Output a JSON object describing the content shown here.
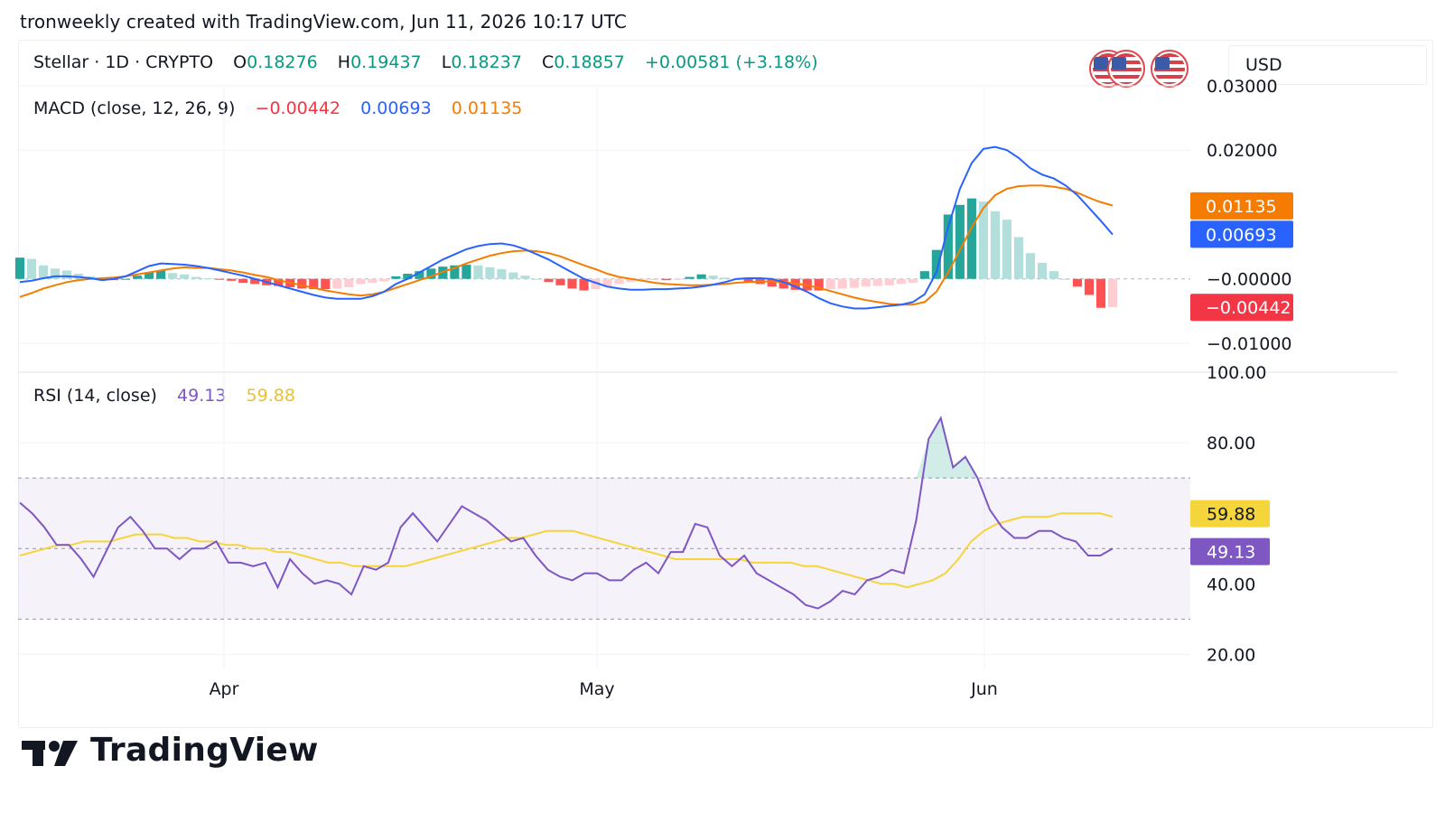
{
  "caption": "tronweekly created with TradingView.com, Jun 11, 2026 10:17 UTC",
  "symbol": {
    "title": "Stellar · 1D · CRYPTO",
    "o_label": "O",
    "o_value": "0.18276",
    "h_label": "H",
    "h_value": "0.19437",
    "l_label": "L",
    "l_value": "0.18237",
    "c_label": "C",
    "c_value": "0.18857",
    "change": "+0.00581 (+3.18%)"
  },
  "currency": "USD",
  "flags": [
    "us-flag-icon",
    "us-flag-icon"
  ],
  "brand": "TradingView",
  "colors": {
    "up": "#089981",
    "down": "#f23645",
    "macd": "#2962ff",
    "signal": "#f57c00",
    "rsi": "#7e57c2",
    "rsi_ma": "#f5d53c",
    "hist_up": "#26a69a",
    "hist_up_light": "#b2dfdb",
    "hist_down": "#ff5252",
    "hist_down_light": "#ffcdd2"
  },
  "chart_data": [
    {
      "type": "line",
      "title": "MACD (close, 12, 26, 9)",
      "legend_values": {
        "histogram": "−0.00442",
        "macd": "0.00693",
        "signal": "0.01135"
      },
      "x_ticks": [
        "Apr",
        "May",
        "Jun"
      ],
      "y_ticks": [
        "0.03000",
        "0.02000",
        "−0.00000",
        "−0.01000"
      ],
      "ylim": [
        -0.0145,
        0.03
      ],
      "price_tags": {
        "signal": "0.01135",
        "macd": "0.00693",
        "histogram": "−0.00442"
      },
      "series": [
        {
          "name": "MACD",
          "values": [
            -0.0005,
            -0.0003,
            0.0001,
            0.0004,
            0.0004,
            0.0003,
            0.0001,
            -0.0002,
            0.0,
            0.0004,
            0.0012,
            0.002,
            0.0024,
            0.0023,
            0.0022,
            0.002,
            0.0017,
            0.0013,
            0.0009,
            0.0005,
            0.0,
            -0.0005,
            -0.001,
            -0.0015,
            -0.002,
            -0.0025,
            -0.0029,
            -0.0031,
            -0.0031,
            -0.0031,
            -0.0027,
            -0.002,
            -0.0008,
            0.0,
            0.001,
            0.002,
            0.003,
            0.0038,
            0.0046,
            0.0051,
            0.0054,
            0.0055,
            0.0052,
            0.0046,
            0.0038,
            0.003,
            0.002,
            0.001,
            0.0,
            -0.0006,
            -0.0012,
            -0.0015,
            -0.0017,
            -0.0017,
            -0.0016,
            -0.0016,
            -0.0015,
            -0.0014,
            -0.0012,
            -0.0009,
            -0.0005,
            0.0,
            0.0001,
            0.0001,
            0.0,
            -0.0005,
            -0.0012,
            -0.002,
            -0.003,
            -0.0038,
            -0.0043,
            -0.0046,
            -0.0046,
            -0.0044,
            -0.0042,
            -0.004,
            -0.0036,
            -0.0024,
            0.001,
            0.008,
            0.014,
            0.018,
            0.0202,
            0.0205,
            0.02,
            0.0188,
            0.0172,
            0.0162,
            0.0156,
            0.0145,
            0.013,
            0.011,
            0.009,
            0.0069
          ]
        },
        {
          "name": "Signal",
          "values": [
            -0.0028,
            -0.0022,
            -0.0015,
            -0.001,
            -0.0005,
            -0.0002,
            0.0,
            0.0001,
            0.0002,
            0.0004,
            0.0007,
            0.001,
            0.0013,
            0.0016,
            0.0018,
            0.0017,
            0.0017,
            0.0015,
            0.0013,
            0.001,
            0.0006,
            0.0003,
            -0.0002,
            -0.0006,
            -0.001,
            -0.0014,
            -0.0018,
            -0.0021,
            -0.0024,
            -0.0026,
            -0.0024,
            -0.002,
            -0.0014,
            -0.0008,
            -0.0002,
            0.0004,
            0.0011,
            0.0017,
            0.0024,
            0.003,
            0.0036,
            0.004,
            0.0043,
            0.0044,
            0.0043,
            0.004,
            0.0035,
            0.0028,
            0.0021,
            0.0015,
            0.0008,
            0.0003,
            0.0,
            -0.0003,
            -0.0006,
            -0.0008,
            -0.0009,
            -0.001,
            -0.001,
            -0.0009,
            -0.0008,
            -0.0006,
            -0.0005,
            -0.0004,
            -0.0004,
            -0.0005,
            -0.0007,
            -0.001,
            -0.0014,
            -0.0019,
            -0.0024,
            -0.0029,
            -0.0033,
            -0.0036,
            -0.0039,
            -0.004,
            -0.004,
            -0.0036,
            -0.002,
            0.001,
            0.0045,
            0.008,
            0.011,
            0.013,
            0.014,
            0.0144,
            0.0145,
            0.0145,
            0.0143,
            0.014,
            0.0134,
            0.0126,
            0.0119,
            0.0114
          ]
        }
      ],
      "histogram": [
        0.0033,
        0.0031,
        0.0021,
        0.0016,
        0.0013,
        0.0008,
        0.0004,
        0.0001,
        -0.0002,
        0.0,
        0.0005,
        0.001,
        0.0013,
        0.0009,
        0.0007,
        0.0003,
        0.0001,
        -0.0001,
        -0.0003,
        -0.0006,
        -0.0008,
        -0.001,
        -0.0011,
        -0.0013,
        -0.0015,
        -0.0016,
        -0.0016,
        -0.0015,
        -0.0013,
        -0.0008,
        -0.0006,
        -0.0004,
        0.0004,
        0.0008,
        0.0012,
        0.0016,
        0.0019,
        0.0021,
        0.0022,
        0.0021,
        0.0018,
        0.0015,
        0.001,
        0.0005,
        0.0,
        -0.0005,
        -0.001,
        -0.0015,
        -0.0018,
        -0.0016,
        -0.0012,
        -0.0008,
        -0.0005,
        -0.0003,
        -0.0002,
        -0.0002,
        -0.0001,
        0.0003,
        0.0007,
        0.0005,
        0.0002,
        -0.0001,
        -0.0004,
        -0.0008,
        -0.0012,
        -0.0015,
        -0.0017,
        -0.0018,
        -0.0018,
        -0.0016,
        -0.0015,
        -0.0014,
        -0.0012,
        -0.0011,
        -0.001,
        -0.0008,
        -0.0006,
        0.0012,
        0.0045,
        0.01,
        0.0115,
        0.0125,
        0.012,
        0.0105,
        0.0092,
        0.0065,
        0.004,
        0.0025,
        0.0012,
        0.0,
        -0.0012,
        -0.0025,
        -0.0045,
        -0.0044
      ]
    },
    {
      "type": "line",
      "title": "RSI (14, close)",
      "legend_values": {
        "rsi": "49.13",
        "rsi_ma": "59.88"
      },
      "y_ticks": [
        "100.00",
        "80.00",
        "40.00",
        "20.00"
      ],
      "bands": [
        30,
        50,
        70
      ],
      "ylim": [
        16,
        100
      ],
      "price_tags": {
        "rsi_ma": "59.88",
        "rsi": "49.13"
      },
      "series": [
        {
          "name": "RSI",
          "values": [
            63,
            60,
            56,
            51,
            51,
            47,
            42,
            49,
            56,
            59,
            55,
            50,
            50,
            47,
            50,
            50,
            52,
            46,
            46,
            45,
            46,
            39,
            47,
            43,
            40,
            41,
            40,
            37,
            45,
            44,
            46,
            56,
            60,
            56,
            52,
            57,
            62,
            60,
            58,
            55,
            52,
            53,
            48,
            44,
            42,
            41,
            43,
            43,
            41,
            41,
            44,
            46,
            43,
            49,
            49,
            57,
            56,
            48,
            45,
            48,
            43,
            41,
            39,
            37,
            34,
            33,
            35,
            38,
            37,
            41,
            42,
            44,
            43,
            58,
            81,
            87,
            73,
            76,
            70,
            61,
            56,
            53,
            53,
            55,
            55,
            53,
            52,
            48,
            48,
            50
          ]
        },
        {
          "name": "RSI MA",
          "values": [
            48,
            49,
            50,
            51,
            51,
            52,
            52,
            52,
            53,
            54,
            54,
            54,
            53,
            53,
            52,
            52,
            51,
            51,
            50,
            50,
            49,
            49,
            48,
            47,
            46,
            46,
            45,
            45,
            45,
            45,
            45,
            46,
            47,
            48,
            49,
            50,
            51,
            52,
            53,
            53,
            54,
            55,
            55,
            55,
            54,
            53,
            52,
            51,
            50,
            49,
            48,
            47,
            47,
            47,
            47,
            47,
            47,
            46,
            46,
            46,
            46,
            45,
            45,
            44,
            43,
            42,
            41,
            40,
            40,
            39,
            40,
            41,
            43,
            47,
            52,
            55,
            57,
            58,
            59,
            59,
            59,
            60,
            60,
            60,
            60,
            59
          ]
        }
      ]
    }
  ]
}
